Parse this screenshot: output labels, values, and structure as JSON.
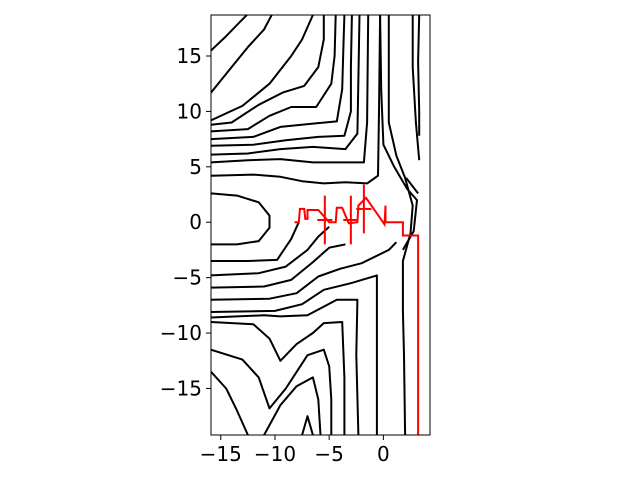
{
  "chart_data": {
    "type": "contour",
    "title": "",
    "xlabel": "",
    "ylabel": "",
    "xlim": [
      -15.9,
      4.3
    ],
    "ylim": [
      -19.2,
      18.7
    ],
    "grid": false,
    "legend": "none",
    "x_ticks": [
      {
        "value": -15,
        "label": "−15"
      },
      {
        "value": -10,
        "label": "−10"
      },
      {
        "value": -5,
        "label": "−5"
      },
      {
        "value": 0,
        "label": "0"
      }
    ],
    "y_ticks": [
      {
        "value": 15,
        "label": "15"
      },
      {
        "value": 10,
        "label": "10"
      },
      {
        "value": 5,
        "label": "5"
      },
      {
        "value": 0,
        "label": "0"
      },
      {
        "value": -5,
        "label": "−5"
      },
      {
        "value": -10,
        "label": "−10"
      },
      {
        "value": -15,
        "label": "−15"
      }
    ],
    "contour_color": "#000000",
    "contours": [
      [
        [
          -15.9,
          15.5
        ],
        [
          -14.5,
          16.8
        ],
        [
          -13.2,
          18.1
        ],
        [
          -12.6,
          18.7
        ]
      ],
      [
        [
          -15.9,
          11.7
        ],
        [
          -14.0,
          14.0
        ],
        [
          -12.5,
          15.8
        ],
        [
          -11.0,
          17.4
        ],
        [
          -10.3,
          18.7
        ]
      ],
      [
        [
          -15.9,
          9.2
        ],
        [
          -13.0,
          10.5
        ],
        [
          -10.5,
          12.5
        ],
        [
          -8.5,
          15.0
        ],
        [
          -7.5,
          16.5
        ],
        [
          -6.5,
          18.7
        ]
      ],
      [
        [
          -15.9,
          8.8
        ],
        [
          -14.0,
          9.0
        ],
        [
          -11.5,
          10.6
        ],
        [
          -9.3,
          11.7
        ],
        [
          -7.3,
          12.3
        ],
        [
          -6.0,
          14.0
        ],
        [
          -5.5,
          16.5
        ],
        [
          -5.5,
          18.7
        ]
      ],
      [
        [
          -15.9,
          8.2
        ],
        [
          -12.5,
          8.4
        ],
        [
          -10.5,
          9.6
        ],
        [
          -8.5,
          10.4
        ],
        [
          -6.2,
          10.4
        ],
        [
          -4.8,
          12.5
        ],
        [
          -4.5,
          15.0
        ],
        [
          -4.4,
          18.7
        ]
      ],
      [
        [
          -15.9,
          7.5
        ],
        [
          -12.0,
          7.7
        ],
        [
          -9.5,
          8.6
        ],
        [
          -6.5,
          8.9
        ],
        [
          -4.3,
          9.1
        ],
        [
          -3.8,
          12.0
        ],
        [
          -3.7,
          15.5
        ],
        [
          -3.6,
          18.7
        ]
      ],
      [
        [
          -15.9,
          6.9
        ],
        [
          -12.0,
          7.0
        ],
        [
          -9.0,
          7.4
        ],
        [
          -6.0,
          7.7
        ],
        [
          -3.6,
          7.8
        ],
        [
          -3.0,
          10.0
        ],
        [
          -3.0,
          14.0
        ],
        [
          -2.9,
          18.7
        ]
      ],
      [
        [
          -15.9,
          6.1
        ],
        [
          -12.5,
          6.2
        ],
        [
          -9.5,
          6.6
        ],
        [
          -6.5,
          6.8
        ],
        [
          -3.5,
          6.6
        ],
        [
          -2.4,
          8.0
        ],
        [
          -2.3,
          13.0
        ],
        [
          -2.2,
          18.7
        ]
      ],
      [
        [
          -15.9,
          5.4
        ],
        [
          -12.5,
          5.6
        ],
        [
          -9.5,
          5.7
        ],
        [
          -6.5,
          5.4
        ],
        [
          -3.5,
          5.4
        ],
        [
          -1.8,
          5.4
        ],
        [
          -1.5,
          9.0
        ],
        [
          -1.4,
          18.7
        ]
      ],
      [
        [
          -15.9,
          4.2
        ],
        [
          -12.0,
          4.3
        ],
        [
          -9.5,
          4.1
        ],
        [
          -7.5,
          3.7
        ],
        [
          -5.5,
          3.5
        ],
        [
          -3.5,
          3.6
        ],
        [
          -1.5,
          3.5
        ],
        [
          -0.5,
          4.2
        ],
        [
          -0.4,
          10.0
        ],
        [
          -0.3,
          18.7
        ]
      ],
      [
        [
          -15.9,
          2.6
        ],
        [
          -13.5,
          2.4
        ],
        [
          -11.5,
          1.8
        ],
        [
          -10.5,
          0.6
        ],
        [
          -10.5,
          -0.5
        ],
        [
          -11.5,
          -1.7
        ],
        [
          -13.5,
          -2.0
        ],
        [
          -15.9,
          -2.0
        ]
      ],
      [
        [
          -15.9,
          -3.5
        ],
        [
          -12.5,
          -3.5
        ],
        [
          -9.8,
          -3.4
        ],
        [
          -8.5,
          -1.5
        ],
        [
          -7.8,
          0.0
        ]
      ],
      [
        [
          -15.9,
          -4.8
        ],
        [
          -11.5,
          -4.6
        ],
        [
          -9.0,
          -4.0
        ],
        [
          -7.0,
          -2.5
        ],
        [
          -6.0,
          -1.3
        ],
        [
          -5.0,
          -0.4
        ]
      ],
      [
        [
          -15.9,
          -5.9
        ],
        [
          -11.0,
          -5.8
        ],
        [
          -8.5,
          -5.2
        ],
        [
          -6.5,
          -3.6
        ],
        [
          -5.0,
          -2.3
        ],
        [
          -3.5,
          -2.0
        ]
      ],
      [
        [
          -15.9,
          -7.0
        ],
        [
          -10.5,
          -6.9
        ],
        [
          -8.0,
          -6.4
        ],
        [
          -6.0,
          -4.9
        ],
        [
          -4.0,
          -4.2
        ],
        [
          -2.0,
          -3.7
        ],
        [
          0.5,
          -2.5
        ],
        [
          1.2,
          -1.8
        ]
      ],
      [
        [
          -15.9,
          -8.1
        ],
        [
          -10.0,
          -8.0
        ],
        [
          -7.5,
          -7.4
        ],
        [
          -5.5,
          -6.1
        ],
        [
          -3.0,
          -5.5
        ],
        [
          -0.6,
          -4.8
        ],
        [
          -0.6,
          -10.0
        ],
        [
          -0.6,
          -19.2
        ]
      ],
      [
        [
          -15.9,
          -8.6
        ],
        [
          -11.0,
          -8.4
        ],
        [
          -9.5,
          -8.5
        ],
        [
          -7.0,
          -8.4
        ],
        [
          -4.3,
          -7.0
        ],
        [
          -2.4,
          -7.0
        ],
        [
          -2.5,
          -12.0
        ],
        [
          -2.3,
          -19.2
        ]
      ],
      [
        [
          -15.9,
          -9.0
        ],
        [
          -12.0,
          -9.2
        ],
        [
          -10.5,
          -10.5
        ],
        [
          -9.5,
          -12.5
        ],
        [
          -8.0,
          -11.0
        ],
        [
          -6.5,
          -10.0
        ],
        [
          -5.5,
          -9.1
        ],
        [
          -3.8,
          -9.0
        ],
        [
          -3.6,
          -14.0
        ],
        [
          -3.6,
          -19.2
        ]
      ],
      [
        [
          -15.9,
          -11.5
        ],
        [
          -13.0,
          -12.4
        ],
        [
          -11.5,
          -14.0
        ],
        [
          -10.5,
          -16.8
        ],
        [
          -9.0,
          -15.0
        ],
        [
          -7.0,
          -12.0
        ],
        [
          -5.5,
          -11.5
        ],
        [
          -5.0,
          -13.0
        ],
        [
          -4.8,
          -16.0
        ],
        [
          -4.8,
          -19.2
        ]
      ],
      [
        [
          -15.9,
          -13.5
        ],
        [
          -14.5,
          -15.0
        ],
        [
          -13.5,
          -17.0
        ],
        [
          -12.5,
          -19.2
        ]
      ],
      [
        [
          -11.0,
          -19.2
        ],
        [
          -9.5,
          -16.5
        ],
        [
          -8.0,
          -14.8
        ],
        [
          -6.5,
          -14.0
        ],
        [
          -6.0,
          -16.0
        ],
        [
          -5.8,
          -19.2
        ]
      ],
      [
        [
          -7.5,
          -19.2
        ],
        [
          -7.0,
          -17.5
        ],
        [
          -6.5,
          -19.2
        ]
      ],
      [
        [
          0.5,
          18.7
        ],
        [
          0.5,
          13.0
        ],
        [
          0.5,
          9.0
        ],
        [
          1.2,
          6.0
        ],
        [
          2.0,
          4.0
        ],
        [
          2.7,
          1.5
        ],
        [
          2.5,
          -1.0
        ],
        [
          1.8,
          -3.5
        ],
        [
          1.8,
          -8.0
        ],
        [
          1.9,
          -12.0
        ],
        [
          2.0,
          -19.2
        ]
      ],
      [
        [
          -0.3,
          18.7
        ],
        [
          -0.2,
          12.0
        ],
        [
          0.0,
          7.0
        ],
        [
          1.0,
          5.0
        ],
        [
          2.2,
          3.0
        ],
        [
          3.1,
          2.0
        ],
        [
          2.8,
          -0.8
        ],
        [
          1.8,
          -2.5
        ]
      ],
      [
        [
          2.7,
          18.7
        ],
        [
          2.7,
          14.0
        ],
        [
          3.0,
          9.0
        ],
        [
          3.3,
          5.6
        ]
      ],
      [
        [
          3.3,
          7.8
        ],
        [
          3.3,
          10.0
        ],
        [
          3.2,
          14.5
        ],
        [
          3.3,
          18.7
        ]
      ],
      [
        [
          2.1,
          4.0
        ],
        [
          3.2,
          2.6
        ]
      ]
    ],
    "path_color": "#ff0000",
    "path": [
      [
        -8.2,
        0.0
      ],
      [
        -7.8,
        0.0
      ],
      [
        -7.7,
        1.2
      ],
      [
        -7.3,
        1.2
      ],
      [
        -7.2,
        0.3
      ],
      [
        -7.0,
        0.3
      ],
      [
        -7.0,
        1.1
      ],
      [
        -6.0,
        1.1
      ],
      [
        -5.0,
        0.0
      ],
      [
        -4.4,
        0.0
      ],
      [
        -4.3,
        1.3
      ],
      [
        -3.8,
        1.3
      ],
      [
        -3.2,
        -0.1
      ],
      [
        -2.4,
        0.0
      ],
      [
        -2.3,
        1.5
      ],
      [
        -1.6,
        2.2
      ],
      [
        0.1,
        -0.2
      ],
      [
        0.2,
        1.5
      ],
      [
        0.2,
        0.0
      ],
      [
        1.8,
        0.0
      ],
      [
        1.8,
        -1.2
      ],
      [
        3.2,
        -1.2
      ],
      [
        3.2,
        -19.2
      ]
    ],
    "crosses": [
      [
        -5.4,
        0.2
      ],
      [
        -3.0,
        0.2
      ],
      [
        -1.8,
        1.2
      ]
    ],
    "cross_half_size": [
      0.7,
      2.2
    ]
  }
}
